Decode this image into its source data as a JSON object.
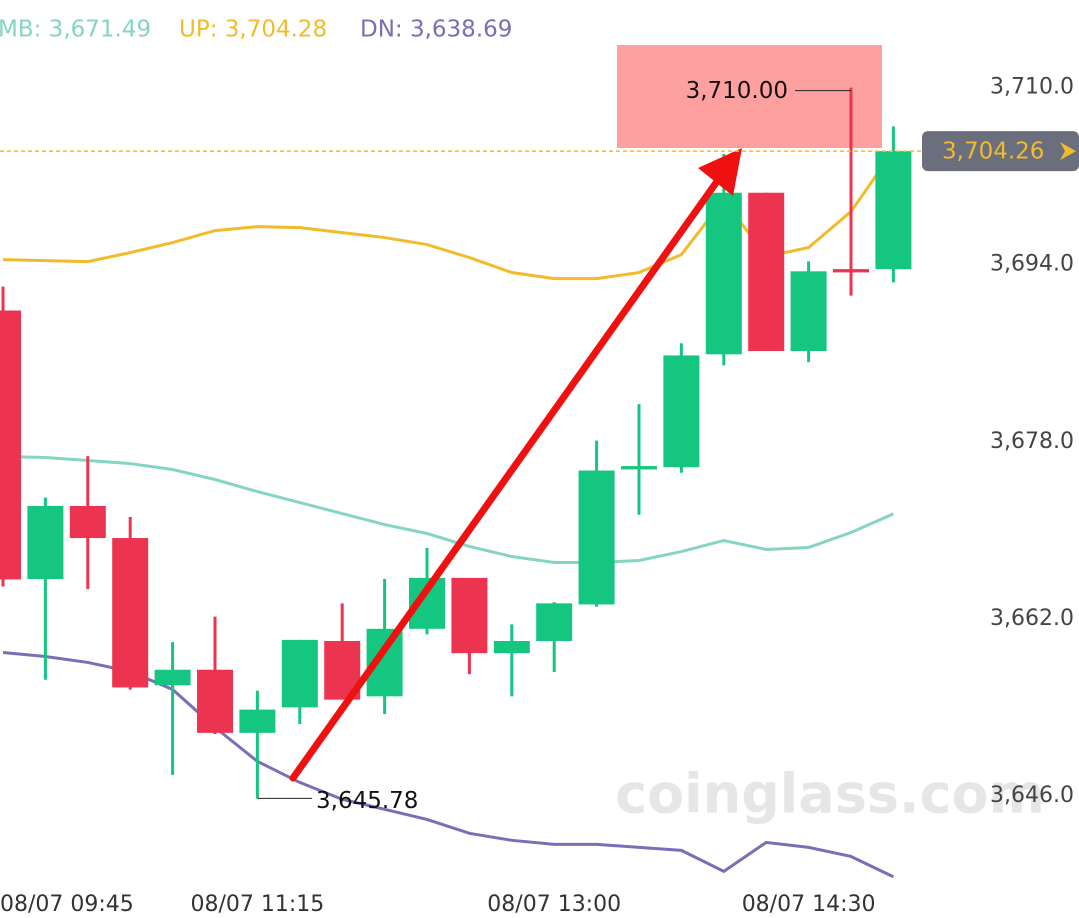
{
  "chart_data": {
    "type": "candlestick",
    "categories": [
      "08/07 09:45",
      null,
      null,
      null,
      null,
      null,
      "08/07 11:15",
      null,
      null,
      null,
      null,
      null,
      null,
      "08/07 13:00",
      null,
      null,
      null,
      null,
      null,
      "08/07 14:30",
      null,
      null
    ],
    "open": [
      3689.86,
      3665.6,
      3672.2,
      3669.3,
      3656.0,
      3657.4,
      3651.7,
      3654.0,
      3660.0,
      3655.0,
      3661.1,
      3665.7,
      3658.9,
      3660.0,
      3663.3,
      3675.5,
      3675.7,
      3685.9,
      3700.5,
      3686.2,
      3693.6,
      3693.6
    ],
    "high": [
      3692.02,
      3672.96,
      3676.7,
      3671.2,
      3659.9,
      3662.2,
      3655.5,
      3660.1,
      3663.4,
      3665.6,
      3668.4,
      3665.7,
      3661.5,
      3663.5,
      3678.1,
      3681.4,
      3686.9,
      3704.0,
      3700.5,
      3694.3,
      3710.0,
      3706.5
    ],
    "low": [
      3664.92,
      3656.5,
      3664.7,
      3655.6,
      3647.9,
      3651.6,
      3645.78,
      3652.5,
      3654.7,
      3653.4,
      3660.6,
      3657.0,
      3655.0,
      3657.2,
      3663.1,
      3671.4,
      3675.2,
      3684.9,
      3686.2,
      3685.2,
      3691.2,
      3692.4
    ],
    "close": [
      3665.56,
      3672.2,
      3669.3,
      3655.8,
      3657.4,
      3651.7,
      3653.8,
      3660.1,
      3654.7,
      3661.1,
      3665.7,
      3658.9,
      3660.0,
      3663.4,
      3675.4,
      3675.8,
      3685.8,
      3700.5,
      3686.2,
      3693.4,
      3693.3,
      3704.26
    ],
    "up_color": "#14c67f",
    "down_color": "#ec3450",
    "series": [
      {
        "name": "MB",
        "legend_label": "MB: 3,671.49",
        "color": "#84d5c3",
        "values": [
          3676.67,
          3676.58,
          3676.31,
          3676.03,
          3675.49,
          3674.59,
          3673.5,
          3672.51,
          3671.51,
          3670.52,
          3669.71,
          3668.54,
          3667.63,
          3667.09,
          3667.09,
          3667.27,
          3668.08,
          3669.08,
          3668.27,
          3668.45,
          3669.8,
          3671.49
        ]
      },
      {
        "name": "UP",
        "legend_label": "UP: 3,704.28",
        "color": "#f1bb2c",
        "values": [
          3694.46,
          3694.37,
          3694.28,
          3695.09,
          3696.0,
          3697.08,
          3697.44,
          3697.35,
          3696.9,
          3696.45,
          3695.82,
          3694.64,
          3693.29,
          3692.74,
          3692.74,
          3693.29,
          3694.91,
          3699.88,
          3694.73,
          3695.55,
          3698.8,
          3704.28
        ]
      },
      {
        "name": "DN",
        "legend_label": "DN: 3,638.69",
        "color": "#7d6db7",
        "values": [
          3658.96,
          3658.6,
          3658.06,
          3657.24,
          3655.62,
          3652.19,
          3649.12,
          3647.22,
          3645.69,
          3644.79,
          3643.88,
          3642.62,
          3641.99,
          3641.62,
          3641.62,
          3641.35,
          3641.08,
          3639.18,
          3641.8,
          3641.35,
          3640.53,
          3638.69
        ]
      }
    ],
    "ylim": [
      3637.5,
      3714.3
    ],
    "yticks": [
      {
        "value": 3646.0,
        "label": "3,646.0"
      },
      {
        "value": 3662.0,
        "label": "3,662.0"
      },
      {
        "value": 3678.0,
        "label": "3,678.0"
      },
      {
        "value": 3694.0,
        "label": "3,694.0"
      },
      {
        "value": 3710.0,
        "label": "3,710.0"
      }
    ],
    "grid": false,
    "last_price": {
      "value": 3704.26,
      "label": "3,704.26"
    },
    "annotations": [
      {
        "value": 3710.0,
        "label": "3,710.00"
      },
      {
        "value": 3645.78,
        "label": "3,645.78"
      }
    ],
    "watermark": "coinglass.com"
  }
}
